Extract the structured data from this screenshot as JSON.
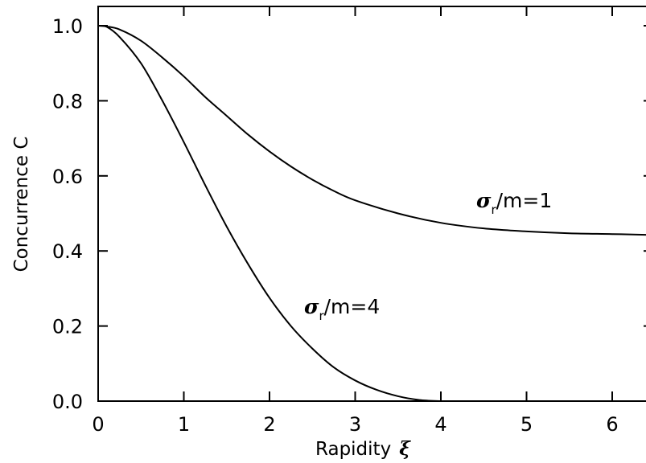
{
  "chart_data": {
    "type": "line",
    "xlabel": "Rapidity",
    "xlabel_symbol": "ξ",
    "ylabel": "Concurrence C",
    "xlim": [
      0,
      6.4
    ],
    "ylim": [
      0,
      1.05
    ],
    "x_ticks": [
      0,
      1,
      2,
      3,
      4,
      5,
      6
    ],
    "y_ticks": [
      0.0,
      0.2,
      0.4,
      0.6,
      0.8,
      1.0
    ],
    "x_tick_labels": [
      "0",
      "1",
      "2",
      "3",
      "4",
      "5",
      "6"
    ],
    "y_tick_labels": [
      "0.0",
      "0.2",
      "0.4",
      "0.6",
      "0.8",
      "1.0"
    ],
    "grid": false,
    "series": [
      {
        "name": "σr/m=1",
        "label_symbol": "σ",
        "label_subscript": "r",
        "label_suffix": "/m=1",
        "x": [
          0,
          0.1,
          0.25,
          0.5,
          0.75,
          1.0,
          1.25,
          1.5,
          1.75,
          2.0,
          2.25,
          2.5,
          2.75,
          3.0,
          3.5,
          4.0,
          4.5,
          5.0,
          5.5,
          6.0,
          6.4
        ],
        "y": [
          1.0,
          0.998,
          0.99,
          0.96,
          0.915,
          0.865,
          0.81,
          0.76,
          0.71,
          0.665,
          0.625,
          0.59,
          0.56,
          0.535,
          0.5,
          0.475,
          0.46,
          0.452,
          0.447,
          0.445,
          0.443
        ]
      },
      {
        "name": "σr/m=4",
        "label_symbol": "σ",
        "label_subscript": "r",
        "label_suffix": "/m=4",
        "x": [
          0,
          0.1,
          0.25,
          0.5,
          0.75,
          1.0,
          1.25,
          1.5,
          1.75,
          2.0,
          2.25,
          2.5,
          2.75,
          3.0,
          3.25,
          3.5,
          3.75,
          4.0
        ],
        "y": [
          1.0,
          0.997,
          0.97,
          0.9,
          0.8,
          0.69,
          0.575,
          0.465,
          0.365,
          0.275,
          0.2,
          0.14,
          0.09,
          0.055,
          0.03,
          0.013,
          0.003,
          0.0
        ]
      }
    ]
  }
}
